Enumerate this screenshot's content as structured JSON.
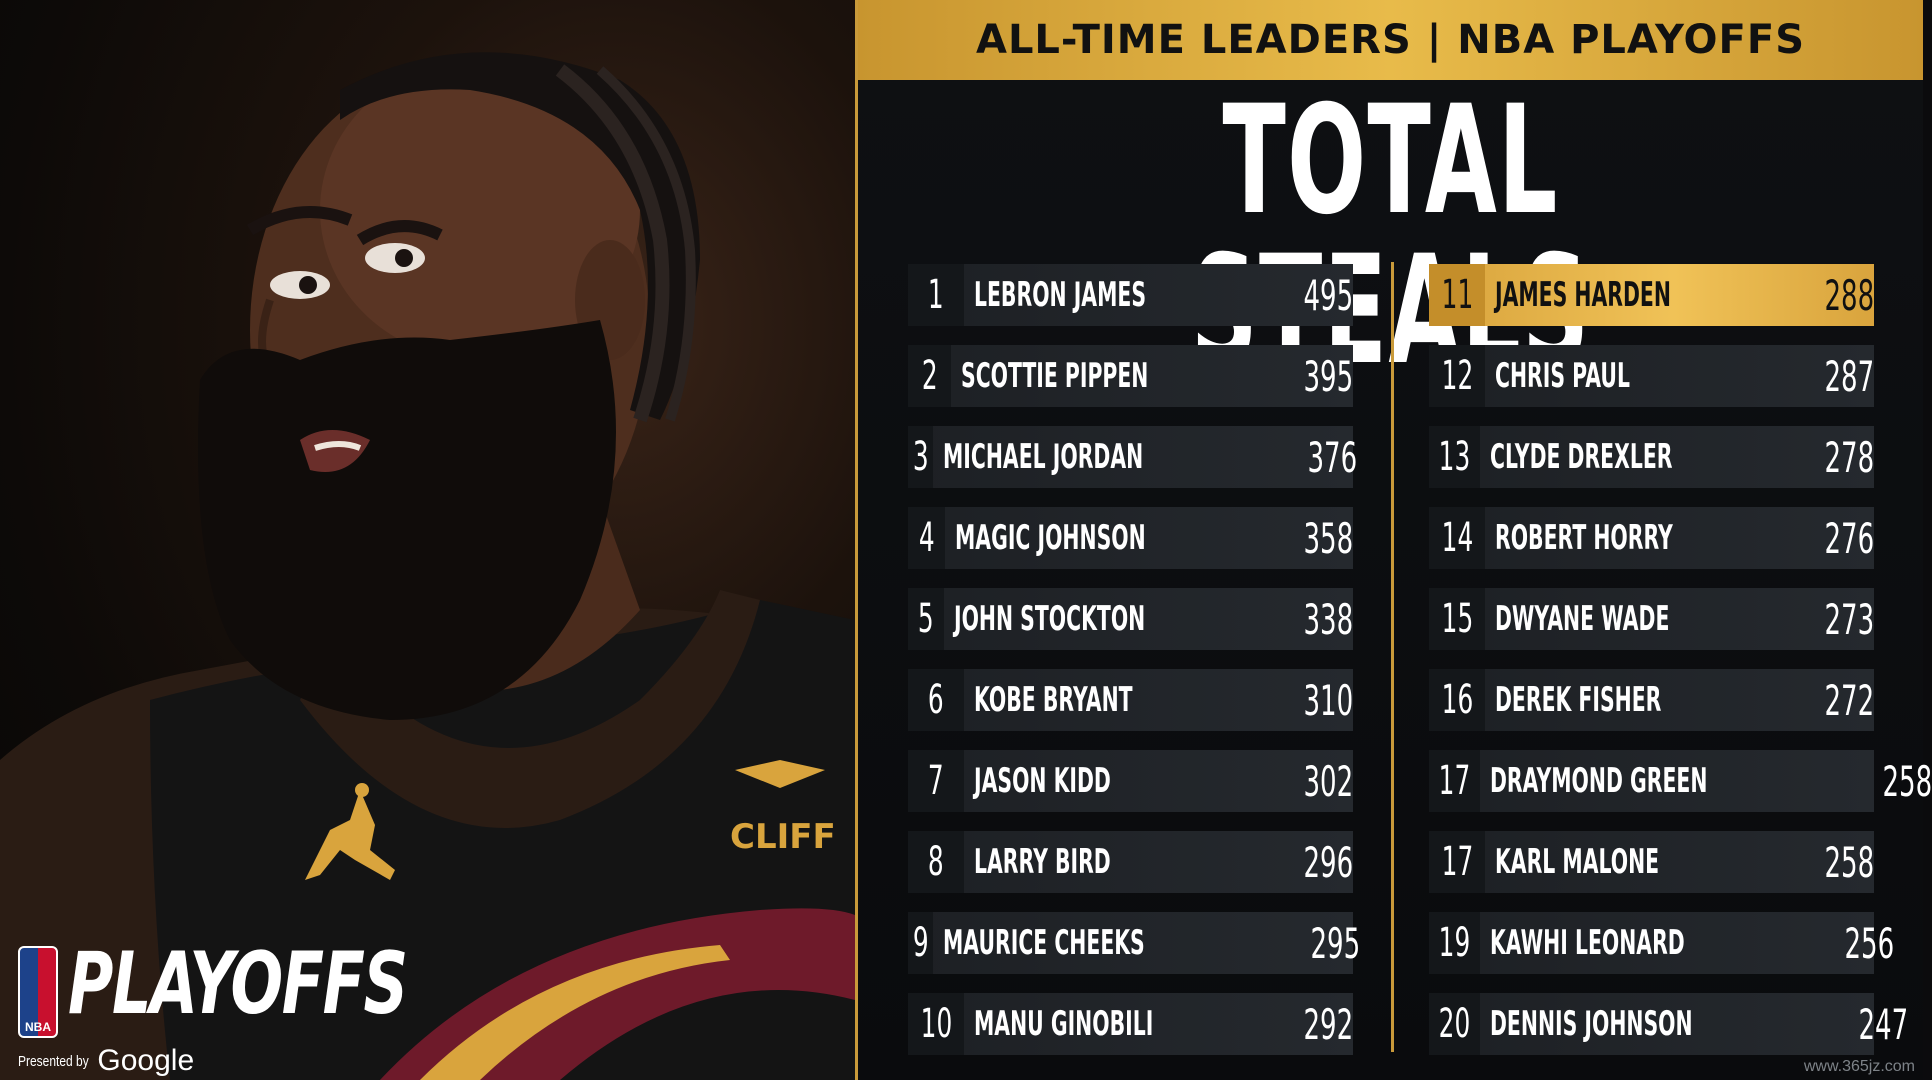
{
  "header": {
    "banner": "ALL-TIME LEADERS | NBA PLAYOFFS",
    "title": "TOTAL STEALS"
  },
  "branding": {
    "logo_text": "NBA",
    "playoffs": "PLAYOFFS",
    "presented_by": "Presented by",
    "sponsor": "Google"
  },
  "photo": {
    "jersey_sponsor": "CLIFF"
  },
  "colors": {
    "gold": "#e8bb4a",
    "highlight": "#f0c257",
    "row_bg": "#1d2024"
  },
  "leaders_left": [
    {
      "rank": "1",
      "name": "LEBRON JAMES",
      "steals": "495"
    },
    {
      "rank": "2",
      "name": "SCOTTIE PIPPEN",
      "steals": "395"
    },
    {
      "rank": "3",
      "name": "MICHAEL JORDAN",
      "steals": "376"
    },
    {
      "rank": "4",
      "name": "MAGIC JOHNSON",
      "steals": "358"
    },
    {
      "rank": "5",
      "name": "JOHN STOCKTON",
      "steals": "338"
    },
    {
      "rank": "6",
      "name": "KOBE BRYANT",
      "steals": "310"
    },
    {
      "rank": "7",
      "name": "JASON KIDD",
      "steals": "302"
    },
    {
      "rank": "8",
      "name": "LARRY BIRD",
      "steals": "296"
    },
    {
      "rank": "9",
      "name": "MAURICE CHEEKS",
      "steals": "295"
    },
    {
      "rank": "10",
      "name": "MANU GINOBILI",
      "steals": "292"
    }
  ],
  "leaders_right": [
    {
      "rank": "11",
      "name": "JAMES HARDEN",
      "steals": "288",
      "highlight": true
    },
    {
      "rank": "12",
      "name": "CHRIS PAUL",
      "steals": "287"
    },
    {
      "rank": "13",
      "name": "CLYDE DREXLER",
      "steals": "278"
    },
    {
      "rank": "14",
      "name": "ROBERT HORRY",
      "steals": "276"
    },
    {
      "rank": "15",
      "name": "DWYANE WADE",
      "steals": "273"
    },
    {
      "rank": "16",
      "name": "DEREK FISHER",
      "steals": "272"
    },
    {
      "rank": "17",
      "name": "DRAYMOND GREEN",
      "steals": "258"
    },
    {
      "rank": "17",
      "name": "KARL MALONE",
      "steals": "258"
    },
    {
      "rank": "19",
      "name": "KAWHI LEONARD",
      "steals": "256"
    },
    {
      "rank": "20",
      "name": "DENNIS JOHNSON",
      "steals": "247"
    }
  ],
  "watermark": "www.365jz.com"
}
